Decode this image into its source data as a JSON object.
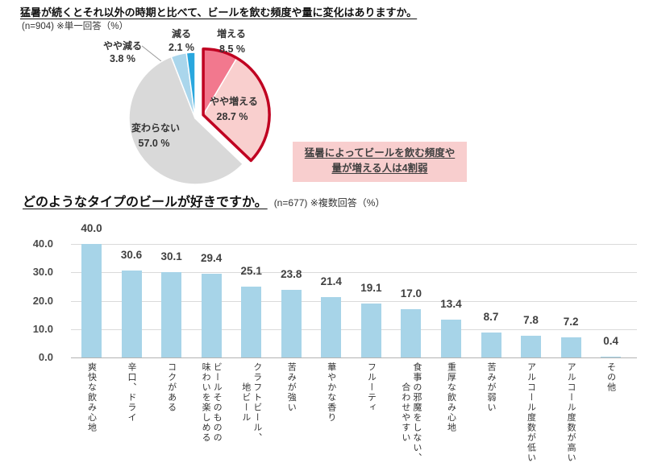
{
  "q1": {
    "title": "猛暑が続くとそれ以外の時期と比べて、ビールを飲む頻度や量に変化はありますか。",
    "subtitle": "(n=904) ※単一回答（%）",
    "annotation": {
      "line1": "猛暑によってビールを飲む頻度や",
      "line2": "量が増える人は4割弱",
      "bg": "#f8cece"
    }
  },
  "q2": {
    "title": "どのようなタイプのビールが好きですか。",
    "subtitle": "(n=677) ※複数回答（%）"
  },
  "chart_data": [
    {
      "type": "pie",
      "title": "猛暑が続くとそれ以外の時期と比べて、ビールを飲む頻度や量に変化はありますか。",
      "n_label": "(n=904)",
      "unit": "%",
      "labels": [
        "増える",
        "やや増える",
        "変わらない",
        "やや減る",
        "減る"
      ],
      "values": [
        8.5,
        28.7,
        57.0,
        3.8,
        2.1
      ],
      "colors": [
        "#f2788e",
        "#f9cfce",
        "#d9d9d9",
        "#aad6ec",
        "#29a7de"
      ],
      "start_angle": "top",
      "direction": "clockwise",
      "highlight": {
        "indices": [
          0,
          1
        ],
        "outline_color": "#c00021",
        "exploded": true
      }
    },
    {
      "type": "bar",
      "title": "どのようなタイプのビールが好きですか。",
      "n_label": "(n=677)",
      "unit": "%",
      "categories": [
        "爽快な飲み心地",
        "辛口、ドライ",
        "コクがある",
        "ビールそのものの\n味わいを楽しめる",
        "クラフトビール、\n地ビール",
        "苦みが強い",
        "華やかな香り",
        "フルーティ",
        "食事の邪魔をしない、\n合わせやすい",
        "重厚な飲み心地",
        "苦みが弱い",
        "アルコール度数が低い",
        "アルコール度数が高い",
        "その他"
      ],
      "values": [
        40.0,
        30.6,
        30.1,
        29.4,
        25.1,
        23.8,
        21.4,
        19.1,
        17.0,
        13.4,
        8.7,
        7.8,
        7.2,
        0.4
      ],
      "bar_color": "#a7d4e8",
      "ylim": [
        0,
        40
      ],
      "yticks": [
        "0.0",
        "10.0",
        "20.0",
        "30.0",
        "40.0"
      ],
      "grid": true,
      "grid_color": "#dadada"
    }
  ]
}
